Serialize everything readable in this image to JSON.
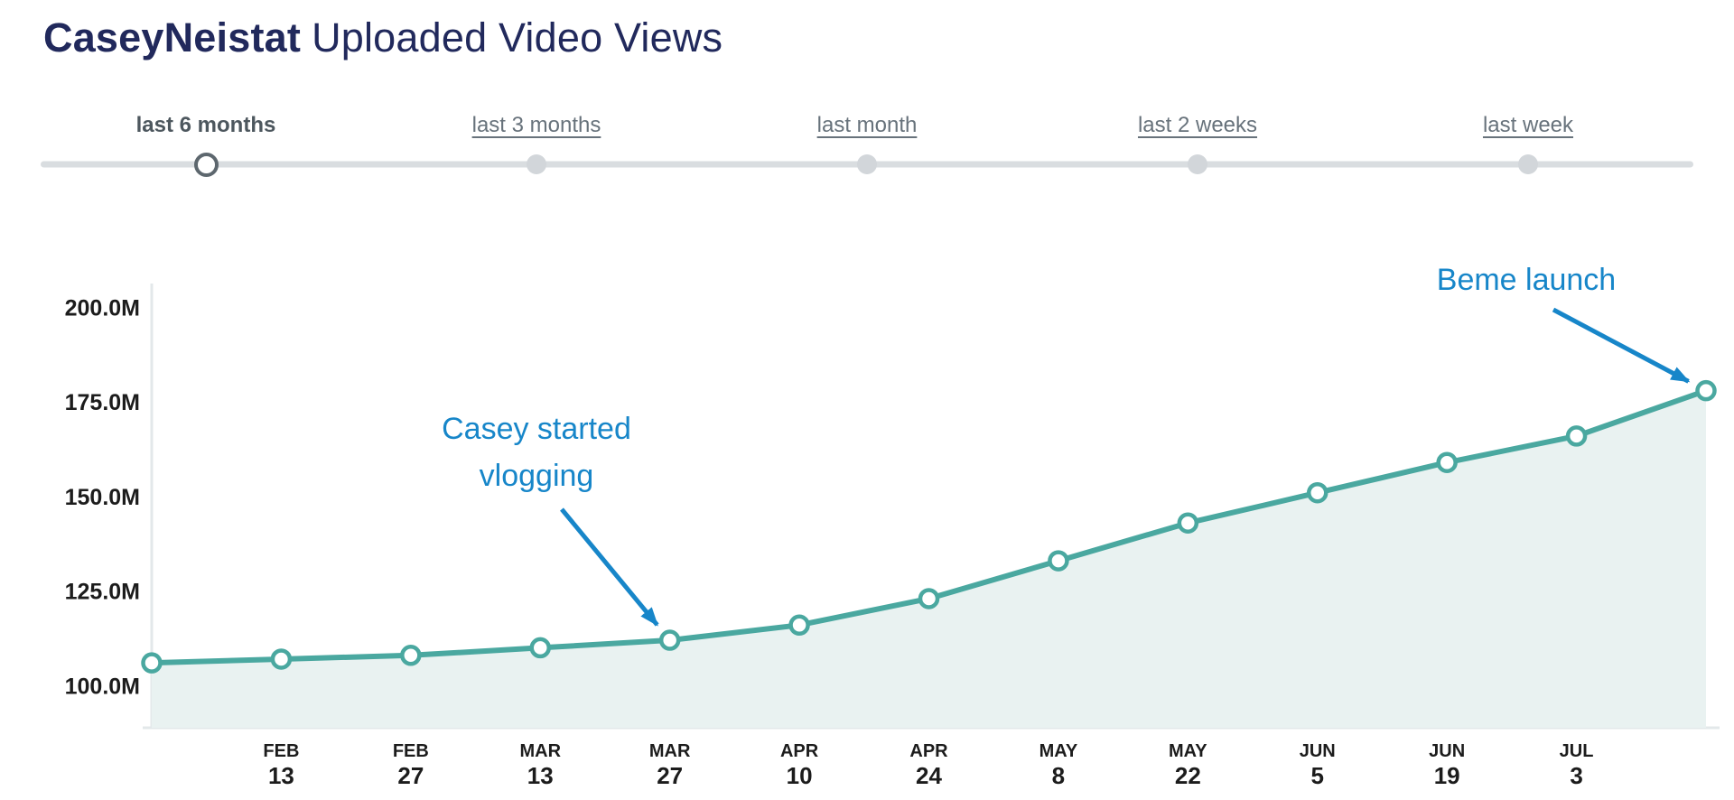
{
  "header": {
    "channel": "CaseyNeistat",
    "title_rest": "Uploaded Video Views"
  },
  "range_selector": {
    "options": [
      {
        "label": "last 6 months",
        "selected": true
      },
      {
        "label": "last 3 months",
        "selected": false
      },
      {
        "label": "last month",
        "selected": false
      },
      {
        "label": "last 2 weeks",
        "selected": false
      },
      {
        "label": "last week",
        "selected": false
      }
    ]
  },
  "chart_data": {
    "type": "area",
    "title": "CaseyNeistat Uploaded Video Views",
    "categories": [
      "",
      "FEB 13",
      "FEB 27",
      "MAR 13",
      "MAR 27",
      "APR 10",
      "APR 24",
      "MAY 8",
      "MAY 22",
      "JUN 5",
      "JUN 19",
      "JUL 3",
      ""
    ],
    "values_millions": [
      106,
      107,
      108,
      110,
      112,
      116,
      123,
      133,
      143,
      151,
      159,
      166,
      178
    ],
    "y_tick_labels": [
      "200.0M",
      "175.0M",
      "150.0M",
      "125.0M",
      "100.0M"
    ],
    "ylim_millions": [
      100,
      200
    ],
    "grid": false,
    "legend": "none",
    "line_color": "#4AA8A0",
    "fill_color": "#E9F2F1",
    "annotation_color": "#1786C9",
    "annotations": [
      {
        "text_lines": [
          "Casey started",
          "vlogging"
        ],
        "target_category_index": 4,
        "color": "#1786C9"
      },
      {
        "text_lines": [
          "Beme launch"
        ],
        "target_category_index": 12,
        "color": "#1786C9"
      }
    ]
  }
}
